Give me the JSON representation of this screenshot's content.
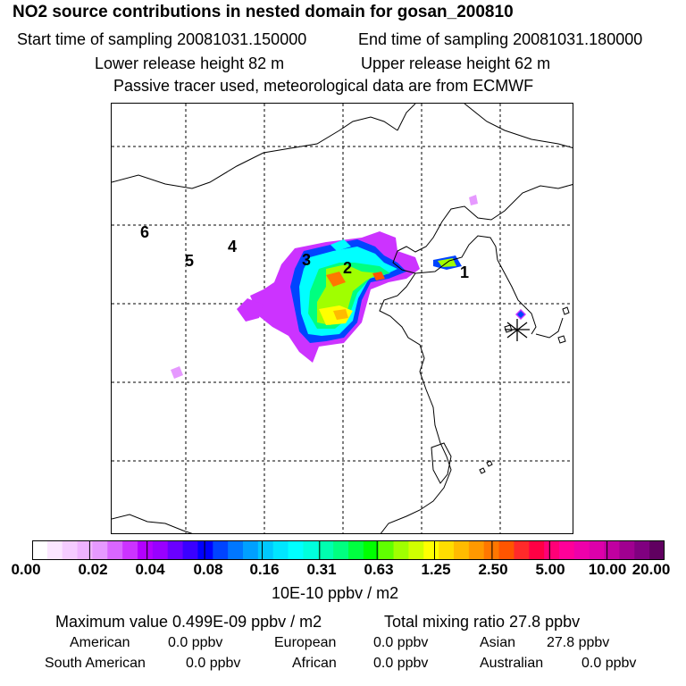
{
  "header": {
    "title": "NO2 source contributions in nested domain for gosan_200810",
    "start_label": "Start time of sampling 20081031.150000",
    "end_label": "End time of sampling 20081031.180000",
    "lower_label": "Lower release height   82 m",
    "upper_label": "Upper release height   62 m",
    "info": "Passive tracer used, meteorological data are from ECMWF"
  },
  "map": {
    "labels": [
      "1",
      "2",
      "3",
      "4",
      "5",
      "6"
    ]
  },
  "colorbar": {
    "ticks": [
      "0.00",
      "0.02",
      "0.04",
      "0.08",
      "0.16",
      "0.31",
      "0.63",
      "1.25",
      "2.50",
      "5.00",
      "10.00",
      "20.00"
    ],
    "colors": [
      "#ffffff",
      "#fbe6ff",
      "#f5ccff",
      "#efb3ff",
      "#e699ff",
      "#d966ff",
      "#cc33ff",
      "#b300ff",
      "#9900ff",
      "#6a00ff",
      "#3a00ff",
      "#0000ff",
      "#0044ff",
      "#0077ff",
      "#00a0ff",
      "#00c8ff",
      "#00e6ff",
      "#00ffff",
      "#00ffdd",
      "#00ffb0",
      "#00ff80",
      "#00ff40",
      "#00ff00",
      "#60ff00",
      "#a0ff00",
      "#d0ff00",
      "#ffff00",
      "#ffdd00",
      "#ffbb00",
      "#ff9900",
      "#ff7700",
      "#ff5500",
      "#ff2a2a",
      "#ff0044",
      "#ff0077",
      "#ff0099",
      "#ee00aa",
      "#dd00aa",
      "#c000a0",
      "#a00090",
      "#800080",
      "#600060"
    ],
    "unit": "10E-10 ppbv / m2"
  },
  "footer": {
    "max_value": "Maximum value  0.499E-09 ppbv / m2",
    "total_mixing": "Total mixing ratio       27.8 ppbv",
    "american": "American",
    "american_val": "0.0 ppbv",
    "european": "European",
    "european_val": "0.0 ppbv",
    "asian": "Asian",
    "asian_val": "27.8 ppbv",
    "south_american": "South American",
    "south_american_val": "0.0 ppbv",
    "african": "African",
    "african_val": "0.0 ppbv",
    "australian": "Australian",
    "australian_val": "0.0 ppbv"
  }
}
